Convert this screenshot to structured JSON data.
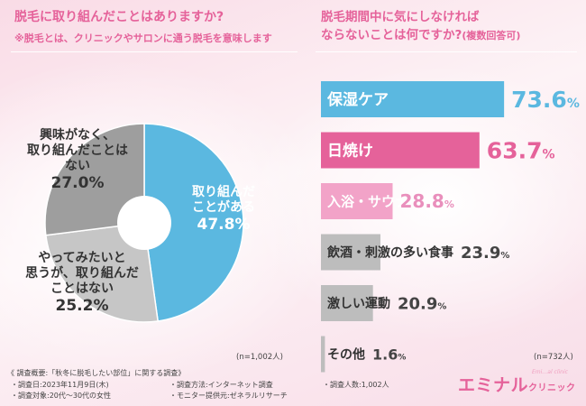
{
  "left_panel": {
    "title": "脱毛に取り組んだことはありますか?",
    "subtitle": "※脱毛とは、クリニックやサロンに通う脱毛を意味します",
    "n_note": "(n=1,002人)"
  },
  "right_panel": {
    "title_line1": "脱毛期間中に気にしなければ",
    "title_line2": "ならないことは何ですか?",
    "title_note": "(複数回答可)",
    "n_note": "(n=732人)"
  },
  "chart_data": [
    {
      "type": "pie",
      "title": "脱毛に取り組んだことはありますか?",
      "donut": true,
      "slices": [
        {
          "label": "取り組んだことがある",
          "value": 47.8,
          "color": "#5bb8e0"
        },
        {
          "label": "やってみたいと思うが、取り組んだことはない",
          "value": 25.2,
          "color": "#c6c6c6"
        },
        {
          "label": "興味がなく、取り組んだことはない",
          "value": 27.0,
          "color": "#9e9e9e"
        }
      ],
      "n": "(n=1,002人)"
    },
    {
      "type": "bar",
      "orientation": "horizontal",
      "title": "脱毛期間中に気にしなければならないことは何ですか?(複数回答可)",
      "categories": [
        "保湿ケア",
        "日焼け",
        "入浴・サウナ",
        "飲酒・刺激の多い食事",
        "激しい運動",
        "その他"
      ],
      "values": [
        73.6,
        63.7,
        28.8,
        23.9,
        20.9,
        1.6
      ],
      "unit": "%",
      "colors": [
        "#5bb8e0",
        "#e5629a",
        "#f2a3c8",
        "#bdbdbd",
        "#bdbdbd",
        "#bdbdbd"
      ],
      "value_colors": [
        "#5bb8e0",
        "#e5629a",
        "#e98fbc",
        "#444444",
        "#444444",
        "#444444"
      ],
      "label_colors": [
        "#ffffff",
        "#ffffff",
        "#ffffff",
        "#333333",
        "#333333",
        "#333333"
      ],
      "xlim": [
        0,
        100
      ],
      "n": "(n=732人)"
    }
  ],
  "pie_labels": {
    "interest_line1": "興味がなく、",
    "interest_line2": "取り組んだことは",
    "interest_line3": "ない",
    "interest_pct": "27.0%",
    "would_line1": "やってみたいと",
    "would_line2": "思うが、取り組んだ",
    "would_line3": "ことはない",
    "would_pct": "25.2%",
    "done_line1": "取り組んだ",
    "done_line2": "ことがある",
    "done_pct": "47.8%"
  },
  "footer": {
    "survey_overview": "《 調査概要:「秋冬に脱毛したい部位」に関する調査》",
    "survey_date": "・調査日:2023年11月9日(木)",
    "survey_target": "・調査対象:20代〜30代の女性",
    "survey_method": "・調査方法:インターネット調査",
    "monitor_provider": "・モニター提供元:ゼネラルリサーチ",
    "survey_count": "・調査人数:1,002人"
  },
  "brand": {
    "name": "エミナル",
    "sub": "クリニック",
    "tiny": "Emi…al clinic"
  }
}
